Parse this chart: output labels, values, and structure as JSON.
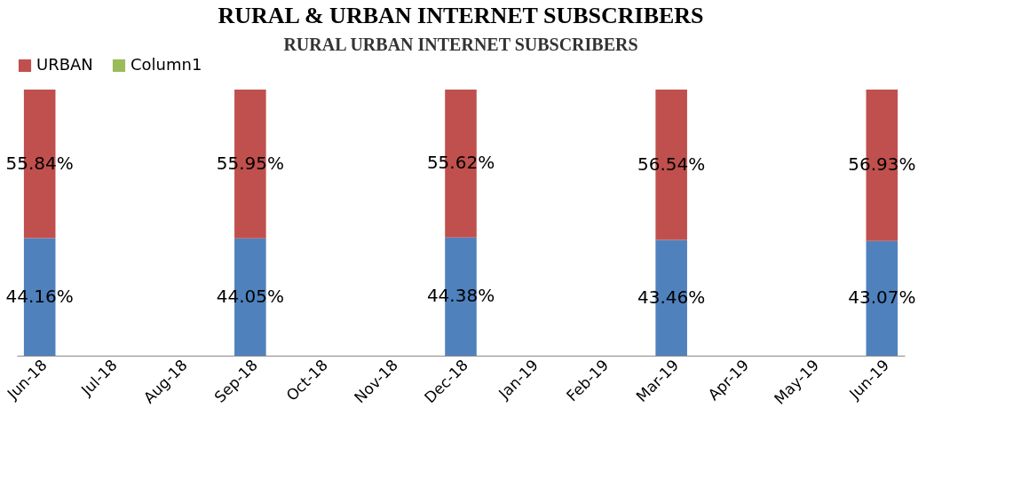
{
  "chart_data": {
    "type": "bar",
    "title": "RURAL & URBAN INTERNET SUBSCRIBERS",
    "subtitle": "RURAL URBAN INTERNET SUBSCRIBERS",
    "categories": [
      "Jun-18",
      "Jul-18",
      "Aug-18",
      "Sep-18",
      "Oct-18",
      "Nov-18",
      "Dec-18",
      "Jan-19",
      "Feb-19",
      "Mar-19",
      "Apr-19",
      "May-19",
      "Jun-19"
    ],
    "stacked": true,
    "legend": "top",
    "series": [
      {
        "color": "#4f81bd",
        "values": [
          44.16,
          null,
          null,
          44.05,
          null,
          null,
          44.38,
          null,
          null,
          43.46,
          null,
          null,
          43.07
        ],
        "value_labels": [
          "44.16%",
          null,
          null,
          "44.05%",
          null,
          null,
          "44.38%",
          null,
          null,
          "43.46%",
          null,
          null,
          "43.07%"
        ]
      },
      {
        "name": "URBAN",
        "color": "#c0504d",
        "values": [
          55.84,
          null,
          null,
          55.95,
          null,
          null,
          55.62,
          null,
          null,
          56.54,
          null,
          null,
          56.93
        ],
        "value_labels": [
          "55.84%",
          null,
          null,
          "55.95%",
          null,
          null,
          "55.62%",
          null,
          null,
          "56.54%",
          null,
          null,
          "56.93%"
        ]
      },
      {
        "name": "Column1",
        "color": "#9bbb59",
        "values": [
          null,
          null,
          null,
          null,
          null,
          null,
          null,
          null,
          null,
          null,
          null,
          null,
          null
        ]
      }
    ]
  }
}
